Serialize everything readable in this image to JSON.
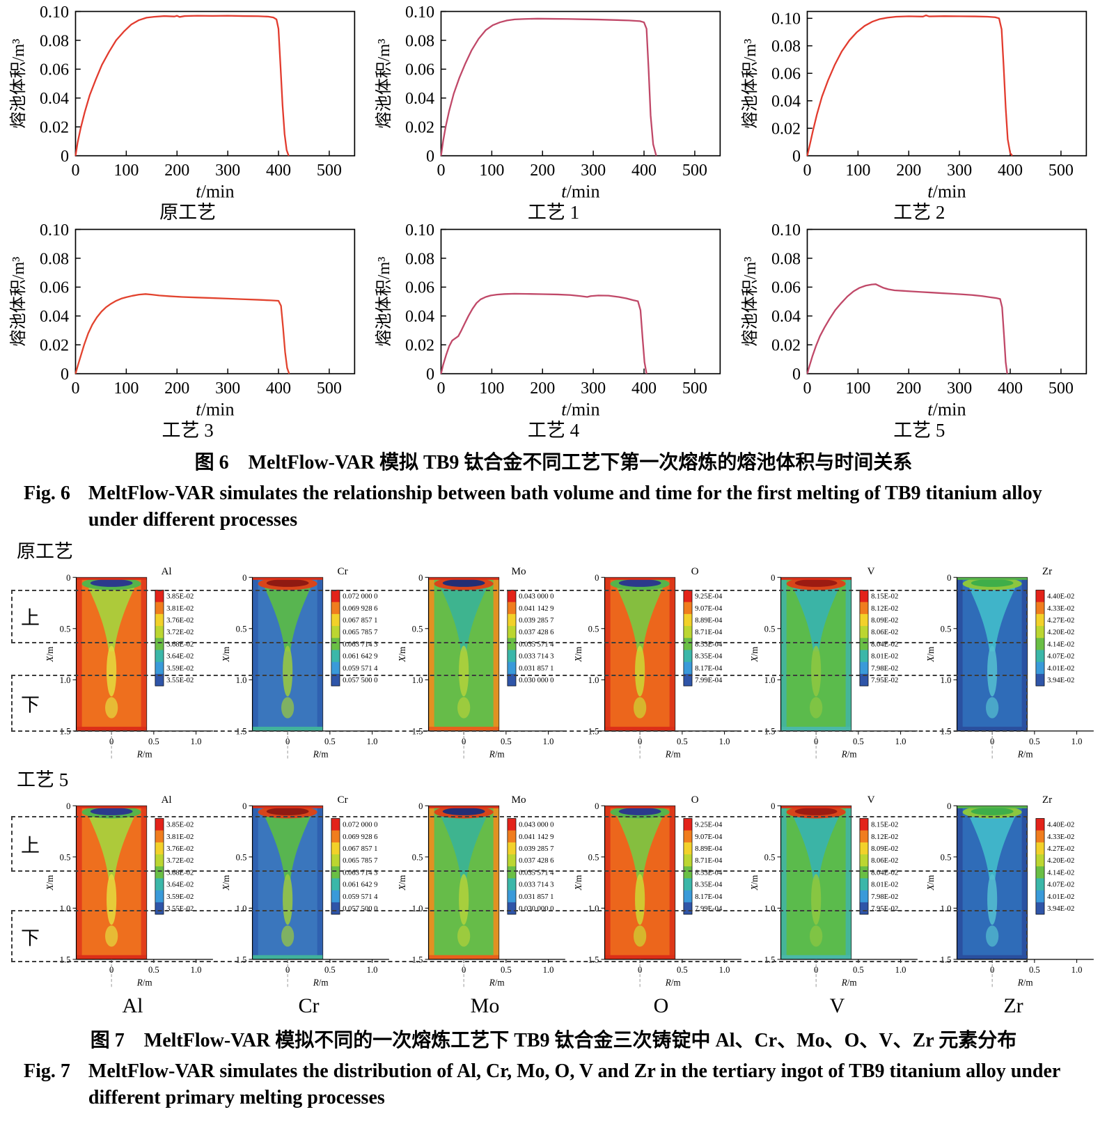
{
  "figure6": {
    "caption_cn": "图 6　MeltFlow-VAR 模拟 TB9 钛合金不同工艺下第一次熔炼的熔池体积与时间关系",
    "caption_en_label": "Fig. 6",
    "caption_en": "MeltFlow-VAR simulates the relationship between bath volume and time for the first melting of TB9 titanium alloy under different processes"
  },
  "chart_data": [
    {
      "type": "line",
      "title": "原工艺",
      "xlabel": "t/min",
      "ylabel": "熔池体积/m³",
      "xlim": [
        0,
        550
      ],
      "ylim": [
        0,
        0.1
      ],
      "xticks": [
        0,
        100,
        200,
        300,
        400,
        500
      ],
      "yticks": [
        0,
        0.02,
        0.04,
        0.06,
        0.08,
        0.1
      ],
      "color": "#e23b2e",
      "points": [
        [
          0,
          0
        ],
        [
          4,
          0.009
        ],
        [
          10,
          0.019
        ],
        [
          18,
          0.03
        ],
        [
          28,
          0.042
        ],
        [
          40,
          0.053
        ],
        [
          52,
          0.063
        ],
        [
          66,
          0.072
        ],
        [
          80,
          0.08
        ],
        [
          95,
          0.086
        ],
        [
          110,
          0.091
        ],
        [
          125,
          0.094
        ],
        [
          140,
          0.0957
        ],
        [
          155,
          0.0963
        ],
        [
          175,
          0.0968
        ],
        [
          195,
          0.0965
        ],
        [
          200,
          0.097
        ],
        [
          205,
          0.0962
        ],
        [
          215,
          0.0968
        ],
        [
          240,
          0.097
        ],
        [
          270,
          0.0969
        ],
        [
          300,
          0.097
        ],
        [
          330,
          0.0968
        ],
        [
          360,
          0.0967
        ],
        [
          380,
          0.0964
        ],
        [
          390,
          0.0958
        ],
        [
          396,
          0.0945
        ],
        [
          400,
          0.088
        ],
        [
          404,
          0.062
        ],
        [
          408,
          0.035
        ],
        [
          412,
          0.015
        ],
        [
          416,
          0.004
        ],
        [
          420,
          0
        ]
      ]
    },
    {
      "type": "line",
      "title": "工艺 1",
      "xlabel": "t/min",
      "ylabel": "熔池体积/m³",
      "xlim": [
        0,
        550
      ],
      "ylim": [
        0,
        0.1
      ],
      "xticks": [
        0,
        100,
        200,
        300,
        400,
        500
      ],
      "yticks": [
        0,
        0.02,
        0.04,
        0.06,
        0.08,
        0.1
      ],
      "color": "#c04868",
      "points": [
        [
          0,
          0
        ],
        [
          4,
          0.01
        ],
        [
          9,
          0.02
        ],
        [
          16,
          0.031
        ],
        [
          25,
          0.043
        ],
        [
          36,
          0.054
        ],
        [
          48,
          0.064
        ],
        [
          60,
          0.073
        ],
        [
          74,
          0.081
        ],
        [
          88,
          0.087
        ],
        [
          102,
          0.0905
        ],
        [
          116,
          0.0925
        ],
        [
          130,
          0.0938
        ],
        [
          145,
          0.0945
        ],
        [
          165,
          0.0948
        ],
        [
          190,
          0.095
        ],
        [
          220,
          0.0949
        ],
        [
          250,
          0.0948
        ],
        [
          280,
          0.0946
        ],
        [
          310,
          0.0944
        ],
        [
          340,
          0.0941
        ],
        [
          370,
          0.0938
        ],
        [
          392,
          0.0933
        ],
        [
          400,
          0.0925
        ],
        [
          405,
          0.088
        ],
        [
          409,
          0.06
        ],
        [
          413,
          0.028
        ],
        [
          418,
          0.008
        ],
        [
          424,
          0
        ]
      ]
    },
    {
      "type": "line",
      "title": "工艺 2",
      "xlabel": "t/min",
      "ylabel": "熔池体积/m³",
      "xlim": [
        0,
        550
      ],
      "ylim": [
        0,
        0.105
      ],
      "xticks": [
        0,
        100,
        200,
        300,
        400,
        500
      ],
      "yticks": [
        0,
        0.02,
        0.04,
        0.06,
        0.08,
        0.1
      ],
      "color": "#e23b2e",
      "points": [
        [
          0,
          0
        ],
        [
          5,
          0.008
        ],
        [
          11,
          0.018
        ],
        [
          19,
          0.03
        ],
        [
          29,
          0.043
        ],
        [
          41,
          0.055
        ],
        [
          54,
          0.066
        ],
        [
          68,
          0.076
        ],
        [
          83,
          0.084
        ],
        [
          98,
          0.09
        ],
        [
          113,
          0.0945
        ],
        [
          128,
          0.0975
        ],
        [
          143,
          0.0995
        ],
        [
          158,
          0.1005
        ],
        [
          175,
          0.1012
        ],
        [
          200,
          0.1015
        ],
        [
          228,
          0.1013
        ],
        [
          234,
          0.1022
        ],
        [
          240,
          0.1014
        ],
        [
          270,
          0.1016
        ],
        [
          300,
          0.1015
        ],
        [
          330,
          0.1014
        ],
        [
          355,
          0.1012
        ],
        [
          370,
          0.1008
        ],
        [
          378,
          0.1
        ],
        [
          383,
          0.092
        ],
        [
          387,
          0.065
        ],
        [
          391,
          0.035
        ],
        [
          395,
          0.012
        ],
        [
          400,
          0.002
        ],
        [
          404,
          0
        ]
      ]
    },
    {
      "type": "line",
      "title": "工艺 3",
      "xlabel": "t/min",
      "ylabel": "熔池体积/m³",
      "xlim": [
        0,
        550
      ],
      "ylim": [
        0,
        0.1
      ],
      "xticks": [
        0,
        100,
        200,
        300,
        400,
        500
      ],
      "yticks": [
        0,
        0.02,
        0.04,
        0.06,
        0.08,
        0.1
      ],
      "color": "#e2432e",
      "points": [
        [
          0,
          0
        ],
        [
          4,
          0.005
        ],
        [
          10,
          0.012
        ],
        [
          17,
          0.02
        ],
        [
          25,
          0.028
        ],
        [
          33,
          0.034
        ],
        [
          42,
          0.039
        ],
        [
          51,
          0.043
        ],
        [
          60,
          0.046
        ],
        [
          70,
          0.0485
        ],
        [
          80,
          0.0505
        ],
        [
          90,
          0.052
        ],
        [
          100,
          0.053
        ],
        [
          112,
          0.054
        ],
        [
          125,
          0.0548
        ],
        [
          138,
          0.0552
        ],
        [
          150,
          0.0548
        ],
        [
          165,
          0.0542
        ],
        [
          185,
          0.0537
        ],
        [
          210,
          0.0532
        ],
        [
          240,
          0.0528
        ],
        [
          270,
          0.0524
        ],
        [
          300,
          0.052
        ],
        [
          330,
          0.0516
        ],
        [
          360,
          0.0512
        ],
        [
          385,
          0.0508
        ],
        [
          400,
          0.0505
        ],
        [
          405,
          0.047
        ],
        [
          409,
          0.032
        ],
        [
          413,
          0.015
        ],
        [
          417,
          0.004
        ],
        [
          421,
          0
        ]
      ]
    },
    {
      "type": "line",
      "title": "工艺 4",
      "xlabel": "t/min",
      "ylabel": "熔池体积/m³",
      "xlim": [
        0,
        550
      ],
      "ylim": [
        0,
        0.1
      ],
      "xticks": [
        0,
        100,
        200,
        300,
        400,
        500
      ],
      "yticks": [
        0,
        0.02,
        0.04,
        0.06,
        0.08,
        0.1
      ],
      "color": "#c04868",
      "points": [
        [
          0,
          0
        ],
        [
          4,
          0.006
        ],
        [
          10,
          0.013
        ],
        [
          16,
          0.019
        ],
        [
          22,
          0.023
        ],
        [
          28,
          0.0245
        ],
        [
          34,
          0.026
        ],
        [
          40,
          0.03
        ],
        [
          47,
          0.035
        ],
        [
          54,
          0.04
        ],
        [
          62,
          0.045
        ],
        [
          70,
          0.049
        ],
        [
          78,
          0.0515
        ],
        [
          88,
          0.0532
        ],
        [
          98,
          0.0542
        ],
        [
          110,
          0.0548
        ],
        [
          125,
          0.0552
        ],
        [
          145,
          0.0554
        ],
        [
          170,
          0.0553
        ],
        [
          200,
          0.0551
        ],
        [
          230,
          0.0549
        ],
        [
          255,
          0.0545
        ],
        [
          275,
          0.0538
        ],
        [
          288,
          0.0532
        ],
        [
          295,
          0.0538
        ],
        [
          310,
          0.0542
        ],
        [
          330,
          0.0541
        ],
        [
          350,
          0.0532
        ],
        [
          365,
          0.0522
        ],
        [
          378,
          0.051
        ],
        [
          388,
          0.0502
        ],
        [
          393,
          0.044
        ],
        [
          397,
          0.025
        ],
        [
          401,
          0.008
        ],
        [
          405,
          0
        ]
      ]
    },
    {
      "type": "line",
      "title": "工艺 5",
      "xlabel": "t/min",
      "ylabel": "熔池体积/m³",
      "xlim": [
        0,
        550
      ],
      "ylim": [
        0,
        0.1
      ],
      "xticks": [
        0,
        100,
        200,
        300,
        400,
        500
      ],
      "yticks": [
        0,
        0.02,
        0.04,
        0.06,
        0.08,
        0.1
      ],
      "color": "#c04868",
      "points": [
        [
          0,
          0
        ],
        [
          4,
          0.005
        ],
        [
          10,
          0.012
        ],
        [
          17,
          0.019
        ],
        [
          25,
          0.026
        ],
        [
          34,
          0.032
        ],
        [
          44,
          0.038
        ],
        [
          55,
          0.044
        ],
        [
          67,
          0.049
        ],
        [
          79,
          0.0535
        ],
        [
          91,
          0.057
        ],
        [
          103,
          0.0595
        ],
        [
          115,
          0.061
        ],
        [
          127,
          0.0618
        ],
        [
          135,
          0.062
        ],
        [
          142,
          0.0608
        ],
        [
          150,
          0.0595
        ],
        [
          160,
          0.0585
        ],
        [
          172,
          0.0578
        ],
        [
          188,
          0.0574
        ],
        [
          205,
          0.057
        ],
        [
          225,
          0.0566
        ],
        [
          245,
          0.0562
        ],
        [
          265,
          0.0558
        ],
        [
          285,
          0.0554
        ],
        [
          305,
          0.055
        ],
        [
          325,
          0.0545
        ],
        [
          345,
          0.0538
        ],
        [
          360,
          0.053
        ],
        [
          372,
          0.0524
        ],
        [
          380,
          0.0518
        ],
        [
          384,
          0.046
        ],
        [
          388,
          0.025
        ],
        [
          391,
          0.008
        ],
        [
          394,
          0
        ]
      ]
    }
  ],
  "figure7": {
    "ylabel": "X/m",
    "xlabel": "R/m",
    "yticks": [
      0,
      0.5,
      1.0,
      1.5
    ],
    "xticks": [
      0,
      0.5,
      1.0
    ],
    "colorbar_colors": [
      "#e3231a",
      "#f07d1e",
      "#f2d12a",
      "#bcd631",
      "#6abf45",
      "#3bb7a9",
      "#3a9ad9",
      "#2f55a8"
    ],
    "rows": [
      {
        "label": "原工艺",
        "regions": [
          {
            "label": "上",
            "x_range": [
              0.12,
              0.62
            ]
          },
          {
            "label": "下",
            "x_range": [
              0.95,
              1.48
            ]
          }
        ]
      },
      {
        "label": "工艺 5",
        "regions": [
          {
            "label": "上",
            "x_range": [
              0.1,
              0.62
            ]
          },
          {
            "label": "下",
            "x_range": [
              1.02,
              1.5
            ]
          }
        ]
      }
    ],
    "elements": [
      {
        "symbol": "Al",
        "scale": [
          "3.85E-02",
          "3.81E-02",
          "3.76E-02",
          "3.72E-02",
          "3.68E-02",
          "3.64E-02",
          "3.59E-02",
          "3.55E-02"
        ],
        "palette": {
          "base": "#ee6f1e",
          "rim": "#e03a1b",
          "funnel": "#a9cf3c",
          "streak": "#e4dc3e",
          "ring": "#56b44a",
          "top": "#2b3a8c",
          "band": "#db2f18",
          "bottom": "#db2f18"
        }
      },
      {
        "symbol": "Cr",
        "scale": [
          "0.072 000 0",
          "0.069 928 6",
          "0.067 857 1",
          "0.065 785 7",
          "0.063 714 3",
          "0.061 642 9",
          "0.059 571 4",
          "0.057 500 0"
        ],
        "palette": {
          "base": "#3a76bd",
          "rim": "#2f5fae",
          "funnel": "#5ab84a",
          "streak": "#9ccb3d",
          "ring": "#d8451a",
          "top": "#8f1a12",
          "band": "#db2f18",
          "bottom": "#41b29b"
        }
      },
      {
        "symbol": "Mo",
        "scale": [
          "0.043 000 0",
          "0.041 142 9",
          "0.039 285 7",
          "0.037 428 6",
          "0.035 571 4",
          "0.033 714 3",
          "0.031 857 1",
          "0.030 000 0"
        ],
        "palette": {
          "base": "#66bc49",
          "rim": "#ee8c1e",
          "funnel": "#3cb394",
          "streak": "#b3d23b",
          "ring": "#d8451a",
          "top": "#232e75",
          "band": "#db2f18",
          "bottom": "#e8601c"
        }
      },
      {
        "symbol": "O",
        "scale": [
          "9.25E-04",
          "9.07E-04",
          "8.89E-04",
          "8.71E-04",
          "8.53E-04",
          "8.35E-04",
          "8.17E-04",
          "7.99E-04"
        ],
        "palette": {
          "base": "#ec661c",
          "rim": "#db3318",
          "funnel": "#7fc341",
          "streak": "#cdd835",
          "ring": "#56b44a",
          "top": "#2b3a8c",
          "band": "#db2f18",
          "bottom": "#db2f18"
        }
      },
      {
        "symbol": "V",
        "scale": [
          "8.15E-02",
          "8.12E-02",
          "8.09E-02",
          "8.06E-02",
          "8.04E-02",
          "8.01E-02",
          "7.98E-02",
          "7.95E-02"
        ],
        "palette": {
          "base": "#5bbb4c",
          "rim": "#42b5a2",
          "funnel": "#3ab3ab",
          "streak": "#8fc841",
          "ring": "#d8451a",
          "top": "#9c1b12",
          "band": "#db2f18",
          "bottom": "#4ab8a8"
        }
      },
      {
        "symbol": "Zr",
        "scale": [
          "4.40E-02",
          "4.33E-02",
          "4.27E-02",
          "4.20E-02",
          "4.14E-02",
          "4.07E-02",
          "4.01E-02",
          "3.94E-02"
        ],
        "palette": {
          "base": "#2f6cb8",
          "rim": "#2a4f9e",
          "funnel": "#41b8c9",
          "streak": "#55c0d0",
          "ring": "#8cc63f",
          "top": "#3fae49",
          "band": "#56b44a",
          "bottom": "#2a4f9e"
        }
      }
    ],
    "bottom_labels": [
      "Al",
      "Cr",
      "Mo",
      "O",
      "V",
      "Zr"
    ],
    "caption_cn": "图 7　MeltFlow-VAR 模拟不同的一次熔炼工艺下 TB9 钛合金三次铸锭中 Al、Cr、Mo、O、V、Zr 元素分布",
    "caption_en_label": "Fig. 7",
    "caption_en": "MeltFlow-VAR simulates the distribution of Al, Cr, Mo, O, V and Zr in the tertiary ingot of TB9 titanium alloy under different primary melting processes"
  }
}
